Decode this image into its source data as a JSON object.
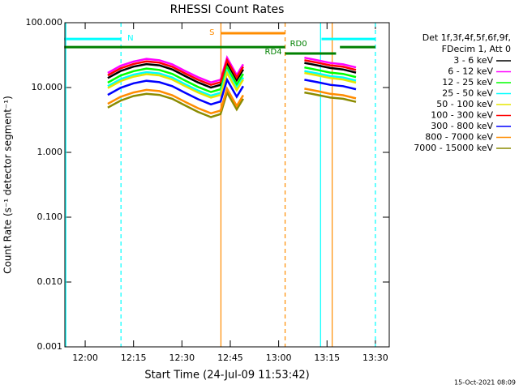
{
  "chart_data": {
    "type": "line",
    "title": "RHESSI Count Rates",
    "x_label": "Start Time (24-Jul-09 11:53:42)",
    "y_label": "Count Rate (s⁻¹ detector segment⁻¹)",
    "legend_header": [
      "Det 1f,3f,4f,5f,6f,9f,",
      "FDecim 1, Att 0"
    ],
    "footer": "15-Oct-2021 08:09",
    "log_y": true,
    "xlim": [
      713.7,
      814.3
    ],
    "ylim": [
      0.001,
      100
    ],
    "xticks": [
      {
        "value": 720,
        "label": "12:00"
      },
      {
        "value": 735,
        "label": "12:15"
      },
      {
        "value": 750,
        "label": "12:30"
      },
      {
        "value": 765,
        "label": "12:45"
      },
      {
        "value": 780,
        "label": "13:00"
      },
      {
        "value": 795,
        "label": "13:15"
      },
      {
        "value": 810,
        "label": "13:30"
      }
    ],
    "yticks": [
      {
        "value": 100,
        "label": "100.000"
      },
      {
        "value": 10,
        "label": "10.000"
      },
      {
        "value": 1,
        "label": "1.000"
      },
      {
        "value": 0.1,
        "label": "0.100"
      },
      {
        "value": 0.01,
        "label": "0.010"
      },
      {
        "value": 0.001,
        "label": "0.001"
      }
    ],
    "x": [
      727,
      731,
      735,
      739,
      743,
      747,
      751,
      755,
      759,
      762,
      764,
      767,
      769,
      780,
      788,
      792,
      796,
      800,
      804
    ],
    "series": [
      {
        "name": "7000 - 15000 keV",
        "color": "#8b8b00",
        "values": [
          4.9,
          6.3,
          7.4,
          8,
          7.7,
          6.7,
          5.3,
          4.2,
          3.5,
          3.9,
          8.4,
          4.6,
          6.7,
          null,
          8.4,
          7.7,
          7,
          6.7,
          6
        ]
      },
      {
        "name": "3 - 6 keV",
        "color": "#000000",
        "values": [
          14,
          18,
          21,
          23,
          22,
          19,
          15,
          12,
          10,
          11,
          24,
          13,
          19,
          null,
          24,
          22,
          20,
          19,
          17
        ]
      },
      {
        "name": "6 - 12 keV",
        "color": "#ff00ff",
        "values": [
          16.8,
          21.6,
          25.2,
          27.6,
          26.4,
          22.8,
          18,
          14.4,
          12,
          13.2,
          28.8,
          15.6,
          22.8,
          null,
          28.8,
          26.4,
          24,
          22.8,
          20.4
        ]
      },
      {
        "name": "12 - 25 keV",
        "color": "#00ff00",
        "values": [
          11.9,
          15.3,
          17.9,
          19.6,
          18.7,
          16.2,
          12.8,
          10.2,
          8.5,
          9.4,
          20.4,
          11.1,
          16.2,
          null,
          20.4,
          18.7,
          17,
          16.2,
          14.5
        ]
      },
      {
        "name": "25 - 50 keV",
        "color": "#00ffff",
        "values": [
          10.5,
          13.5,
          15.8,
          17.3,
          16.5,
          14.3,
          11.3,
          9,
          7.5,
          8.3,
          18,
          9.8,
          14.3,
          null,
          18,
          16.5,
          15,
          14.3,
          12.8
        ]
      },
      {
        "name": "50 - 100 keV",
        "color": "#e6e600",
        "values": [
          9.8,
          12.6,
          14.7,
          16.1,
          15.4,
          13.3,
          10.5,
          8.4,
          7,
          7.7,
          16.8,
          9.1,
          13.3,
          null,
          16.8,
          15.4,
          14,
          13.3,
          11.9
        ]
      },
      {
        "name": "100 - 300 keV",
        "color": "#ff0000",
        "values": [
          15.4,
          19.8,
          23.1,
          25.3,
          24.2,
          20.9,
          16.5,
          13.2,
          11,
          12.1,
          26.4,
          14.3,
          20.9,
          null,
          26.4,
          24.2,
          22,
          20.9,
          18.7
        ]
      },
      {
        "name": "300 - 800 keV",
        "color": "#0000ff",
        "values": [
          7.7,
          9.9,
          11.6,
          12.7,
          12.1,
          10.5,
          8.3,
          6.6,
          5.5,
          6.1,
          13.2,
          7.2,
          10.5,
          null,
          13.2,
          12.1,
          11,
          10.5,
          9.4
        ]
      },
      {
        "name": "800 - 7000 keV",
        "color": "#ff8c00",
        "values": [
          5.6,
          7.2,
          8.4,
          9.2,
          8.8,
          7.6,
          6,
          4.8,
          4,
          4.4,
          9.6,
          5.2,
          7.6,
          null,
          9.6,
          8.8,
          8,
          7.6,
          6.8
        ]
      }
    ],
    "legend_order": [
      1,
      2,
      3,
      4,
      5,
      6,
      7,
      8,
      0
    ],
    "flags": [
      {
        "label": "N",
        "color": "#00ffff",
        "start": 713.5,
        "end": 731.1,
        "level": 56
      },
      {
        "color": "#00ffff",
        "start": 793.3,
        "end": 810,
        "level": 56
      },
      {
        "label": "S",
        "color": "#ff8c00",
        "start": 762.1,
        "end": 782,
        "level": 68.8
      },
      {
        "color": "#008000",
        "start": 713.5,
        "end": 782,
        "level": 42
      },
      {
        "label": "RD4",
        "color": "#008000",
        "start": 782,
        "end": 797.8,
        "level": 33.5
      },
      {
        "label": "RD0",
        "color": "#008000",
        "start": 799,
        "end": 810,
        "level": 42
      }
    ],
    "markers": [
      {
        "x": 714,
        "color": "#00ffff",
        "dashed": false
      },
      {
        "x": 731.1,
        "color": "#00ffff",
        "dashed": true
      },
      {
        "x": 762.1,
        "color": "#ff8c00",
        "dashed": false
      },
      {
        "x": 782,
        "color": "#ff8c00",
        "dashed": true
      },
      {
        "x": 793,
        "color": "#00ffff",
        "dashed": false
      },
      {
        "x": 796.6,
        "color": "#ff8c00",
        "dashed": false
      },
      {
        "x": 810,
        "color": "#00ffff",
        "dashed": true
      }
    ]
  }
}
